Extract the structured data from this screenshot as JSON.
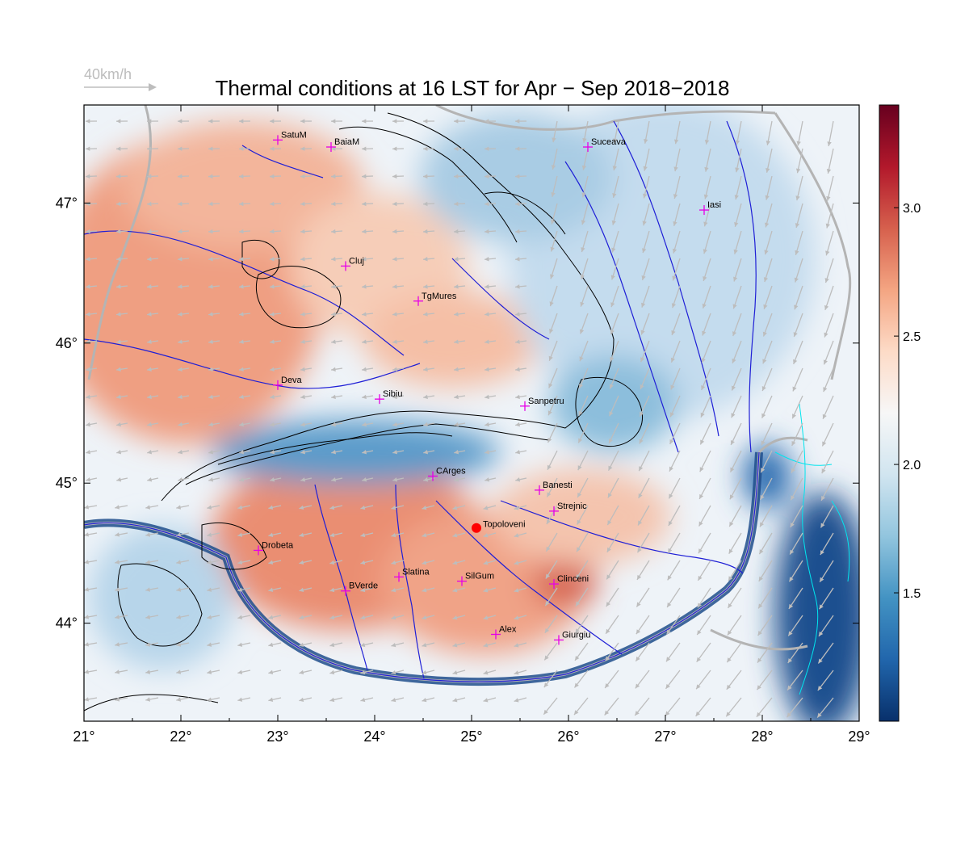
{
  "title": "Thermal conditions at 16 LST for Apr − Sep  2018−2018",
  "wind_reference": {
    "label": "40km/h",
    "arrow_color": "#bdbdbd"
  },
  "map_extent": {
    "lon": [
      21,
      29
    ],
    "lat": [
      43.3,
      47.7
    ]
  },
  "x_ticks": [
    {
      "value": 21,
      "label": "21°"
    },
    {
      "value": 22,
      "label": "22°"
    },
    {
      "value": 23,
      "label": "23°"
    },
    {
      "value": 24,
      "label": "24°"
    },
    {
      "value": 25,
      "label": "25°"
    },
    {
      "value": 26,
      "label": "26°"
    },
    {
      "value": 27,
      "label": "27°"
    },
    {
      "value": 28,
      "label": "28°"
    },
    {
      "value": 29,
      "label": "29°"
    }
  ],
  "y_ticks": [
    {
      "value": 44,
      "label": "44°"
    },
    {
      "value": 45,
      "label": "45°"
    },
    {
      "value": 46,
      "label": "46°"
    },
    {
      "value": 47,
      "label": "47°"
    }
  ],
  "colorbar": {
    "range": [
      1.0,
      3.4
    ],
    "ticks": [
      {
        "value": 1.5,
        "label": "1.5"
      },
      {
        "value": 2.0,
        "label": "2.0"
      },
      {
        "value": 2.5,
        "label": "2.5"
      },
      {
        "value": 3.0,
        "label": "3.0"
      }
    ],
    "colors": [
      "#08306b",
      "#2166ac",
      "#4393c3",
      "#92c5de",
      "#d1e5f0",
      "#f7f7f7",
      "#fddbc7",
      "#f4a582",
      "#d6604d",
      "#b2182b",
      "#67001f"
    ]
  },
  "colors": {
    "station_marker": "#e600e6",
    "highlight_marker": "#ff0000",
    "rivers": "#1f1fd6",
    "borders": "#b4b4b4",
    "contours": "#000000",
    "coast": "#00e5ee"
  },
  "stations": [
    {
      "name": "SatuM",
      "lon": 23.0,
      "lat": 47.45
    },
    {
      "name": "BaiaM",
      "lon": 23.55,
      "lat": 47.4
    },
    {
      "name": "Suceava",
      "lon": 26.2,
      "lat": 47.4
    },
    {
      "name": "Iasi",
      "lon": 27.4,
      "lat": 46.95
    },
    {
      "name": "Cluj",
      "lon": 23.7,
      "lat": 46.55
    },
    {
      "name": "TgMures",
      "lon": 24.45,
      "lat": 46.3
    },
    {
      "name": "Deva",
      "lon": 23.0,
      "lat": 45.7
    },
    {
      "name": "Sibiu",
      "lon": 24.05,
      "lat": 45.6
    },
    {
      "name": "Sanpetru",
      "lon": 25.55,
      "lat": 45.55
    },
    {
      "name": "CArges",
      "lon": 24.6,
      "lat": 45.05
    },
    {
      "name": "Banesti",
      "lon": 25.7,
      "lat": 44.95
    },
    {
      "name": "Strejnic",
      "lon": 25.85,
      "lat": 44.8
    },
    {
      "name": "Drobeta",
      "lon": 22.8,
      "lat": 44.52
    },
    {
      "name": "Slatina",
      "lon": 24.25,
      "lat": 44.33
    },
    {
      "name": "SilGum",
      "lon": 24.9,
      "lat": 44.3
    },
    {
      "name": "BVerde",
      "lon": 23.7,
      "lat": 44.23
    },
    {
      "name": "Clinceni",
      "lon": 25.85,
      "lat": 44.28
    },
    {
      "name": "Alex",
      "lon": 25.25,
      "lat": 43.92
    },
    {
      "name": "Giurgiu",
      "lon": 25.9,
      "lat": 43.88
    }
  ],
  "highlight": {
    "name": "Topoloveni",
    "lon": 25.05,
    "lat": 44.68
  }
}
